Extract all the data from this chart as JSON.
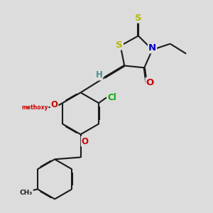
{
  "bg_color": "#dcdcdc",
  "bond_color": "#1a1a1a",
  "bond_width": 1.5,
  "atom_colors": {
    "S": "#b8b800",
    "N": "#0000cc",
    "O": "#cc0000",
    "Cl": "#00aa00",
    "C": "#1a1a1a",
    "H": "#4a9090"
  },
  "font_size": 8.5
}
